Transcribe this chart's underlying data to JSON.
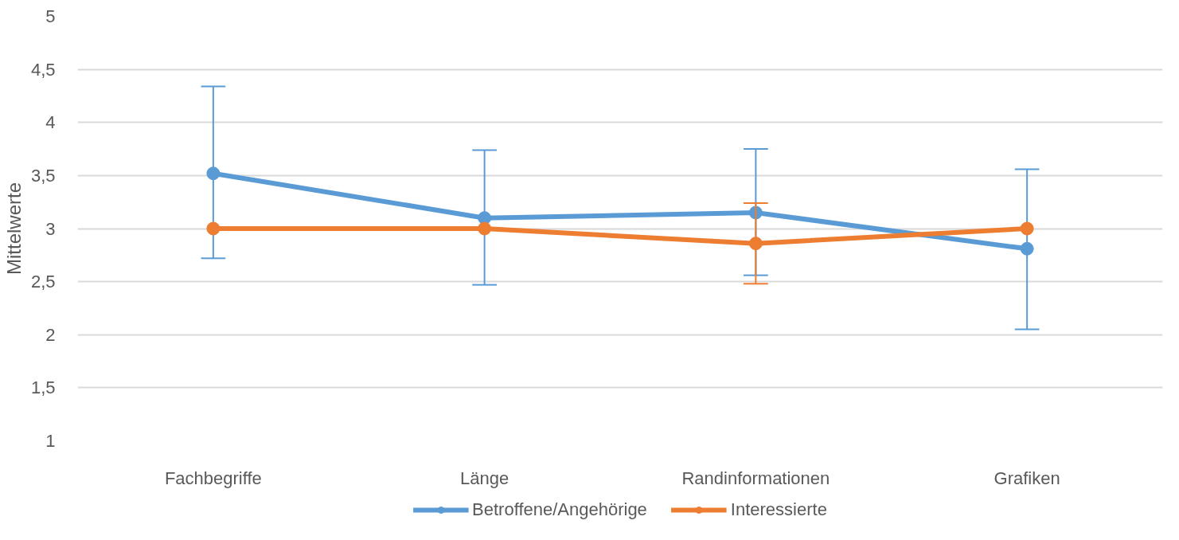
{
  "chart_data": {
    "type": "line",
    "ylabel": "Mittelwerte",
    "categories": [
      "Fachbegriffe",
      "Länge",
      "Randinformationen",
      "Grafiken"
    ],
    "series": [
      {
        "name": "Betroffene/Angehörige",
        "color": "#5b9bd5",
        "values": [
          3.52,
          3.1,
          3.15,
          2.81
        ],
        "errors": [
          [
            2.72,
            4.34
          ],
          [
            2.47,
            3.74
          ],
          [
            2.56,
            3.75
          ],
          [
            2.05,
            3.56
          ]
        ]
      },
      {
        "name": "Interessierte",
        "color": "#ed7d31",
        "values": [
          3.0,
          3.0,
          2.86,
          3.0
        ],
        "errors": [
          null,
          null,
          [
            2.48,
            3.24
          ],
          null
        ]
      }
    ],
    "ylim": [
      1,
      5
    ],
    "yticks": [
      1,
      {
        "value": 1.5,
        "label": "1,5"
      },
      2,
      {
        "value": 2.5,
        "label": "2,5"
      },
      3,
      {
        "value": 3.5,
        "label": "3,5"
      },
      4,
      {
        "value": 4.5,
        "label": "4,5"
      },
      5
    ],
    "grid": "y",
    "legend": "bottom",
    "marker": "circle",
    "line_style": "solid"
  }
}
